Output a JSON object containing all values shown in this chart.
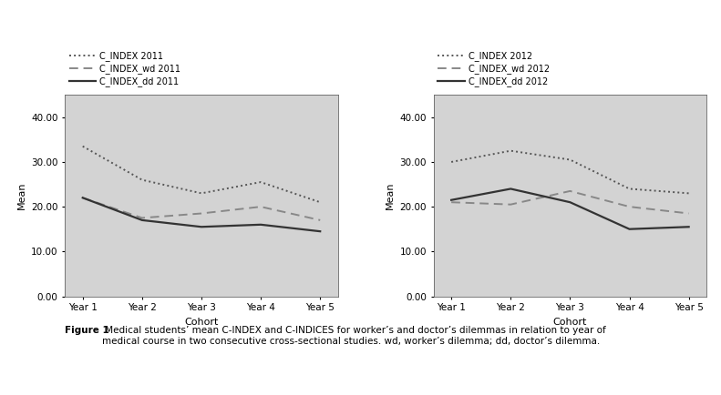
{
  "plot1": {
    "xlabel": "Cohort",
    "ylabel": "Mean",
    "years": [
      "Year 1",
      "Year 2",
      "Year 3",
      "Year 4",
      "Year 5"
    ],
    "series": [
      {
        "label": "C_INDEX 2011",
        "values": [
          33.5,
          26.0,
          23.0,
          25.5,
          21.0
        ],
        "color": "#555555",
        "linestyle": "dotted",
        "linewidth": 1.4
      },
      {
        "label": "C_INDEX_wd 2011",
        "values": [
          22.0,
          17.5,
          18.5,
          20.0,
          17.0
        ],
        "color": "#888888",
        "linestyle": "dashed",
        "linewidth": 1.4
      },
      {
        "label": "C_INDEX_dd 2011",
        "values": [
          22.0,
          17.0,
          15.5,
          16.0,
          14.5
        ],
        "color": "#333333",
        "linestyle": "solid",
        "linewidth": 1.6
      }
    ],
    "ylim": [
      0,
      45
    ],
    "yticks": [
      0.0,
      10.0,
      20.0,
      30.0,
      40.0
    ],
    "background_color": "#d3d3d3"
  },
  "plot2": {
    "xlabel": "Cohort",
    "ylabel": "Mean",
    "years": [
      "Year 1",
      "Year 2",
      "Year 3",
      "Year 4",
      "Year 5"
    ],
    "series": [
      {
        "label": "C_INDEX 2012",
        "values": [
          30.0,
          32.5,
          30.5,
          24.0,
          23.0
        ],
        "color": "#555555",
        "linestyle": "dotted",
        "linewidth": 1.4
      },
      {
        "label": "C_INDEX_wd 2012",
        "values": [
          21.0,
          20.5,
          23.5,
          20.0,
          18.5
        ],
        "color": "#888888",
        "linestyle": "dashed",
        "linewidth": 1.4
      },
      {
        "label": "C_INDEX_dd 2012",
        "values": [
          21.5,
          24.0,
          21.0,
          15.0,
          15.5
        ],
        "color": "#333333",
        "linestyle": "solid",
        "linewidth": 1.6
      }
    ],
    "ylim": [
      0,
      45
    ],
    "yticks": [
      0.0,
      10.0,
      20.0,
      30.0,
      40.0
    ],
    "background_color": "#d3d3d3"
  },
  "caption_bold": "Figure 1",
  "caption_normal": " Medical students’ mean C-INDEX and C-INDICES for worker’s and doctor’s dilemmas in relation to year of\nmedical course in two consecutive cross-sectional studies. wd, worker’s dilemma; dd, doctor’s dilemma.",
  "figure_bgcolor": "#ffffff",
  "legend_fontsize": 7.0,
  "tick_fontsize": 7.5,
  "label_fontsize": 8.0
}
